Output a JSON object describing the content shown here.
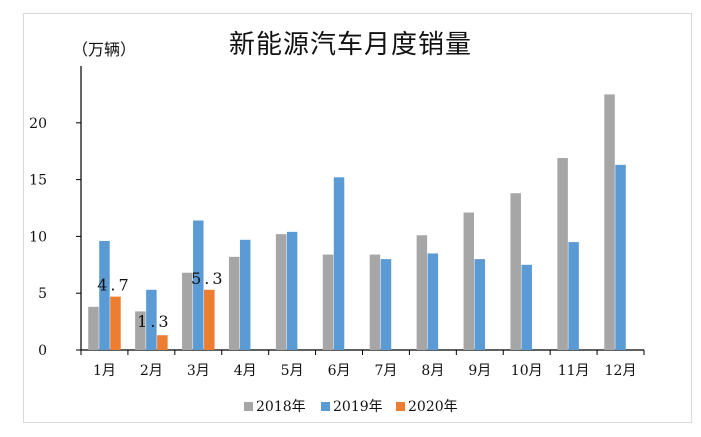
{
  "colors": {
    "s2018": "#a6a6a6",
    "s2019": "#5b9bd5",
    "s2020": "#ed7d31",
    "axis": "#000000",
    "text": "#111111"
  },
  "chart_data": {
    "type": "bar",
    "title": "新能源汽车月度销量",
    "ylabel": "（万辆）",
    "xlabel": "",
    "ylim": [
      0,
      25
    ],
    "yticks": [
      0,
      5,
      10,
      15,
      20
    ],
    "grid": false,
    "legend_position": "bottom",
    "categories": [
      "1月",
      "2月",
      "3月",
      "4月",
      "5月",
      "6月",
      "7月",
      "8月",
      "9月",
      "10月",
      "11月",
      "12月"
    ],
    "series": [
      {
        "name": "2018年",
        "values": [
          3.8,
          3.4,
          6.8,
          8.2,
          10.2,
          8.4,
          8.4,
          10.1,
          12.1,
          13.8,
          16.9,
          22.5
        ]
      },
      {
        "name": "2019年",
        "values": [
          9.6,
          5.3,
          11.4,
          9.7,
          10.4,
          15.2,
          8.0,
          8.5,
          8.0,
          7.5,
          9.5,
          16.3
        ]
      },
      {
        "name": "2020年",
        "values": [
          4.7,
          1.3,
          5.3,
          null,
          null,
          null,
          null,
          null,
          null,
          null,
          null,
          null
        ],
        "data_labels": [
          "4.7",
          "1.3",
          "5.3"
        ]
      }
    ]
  }
}
